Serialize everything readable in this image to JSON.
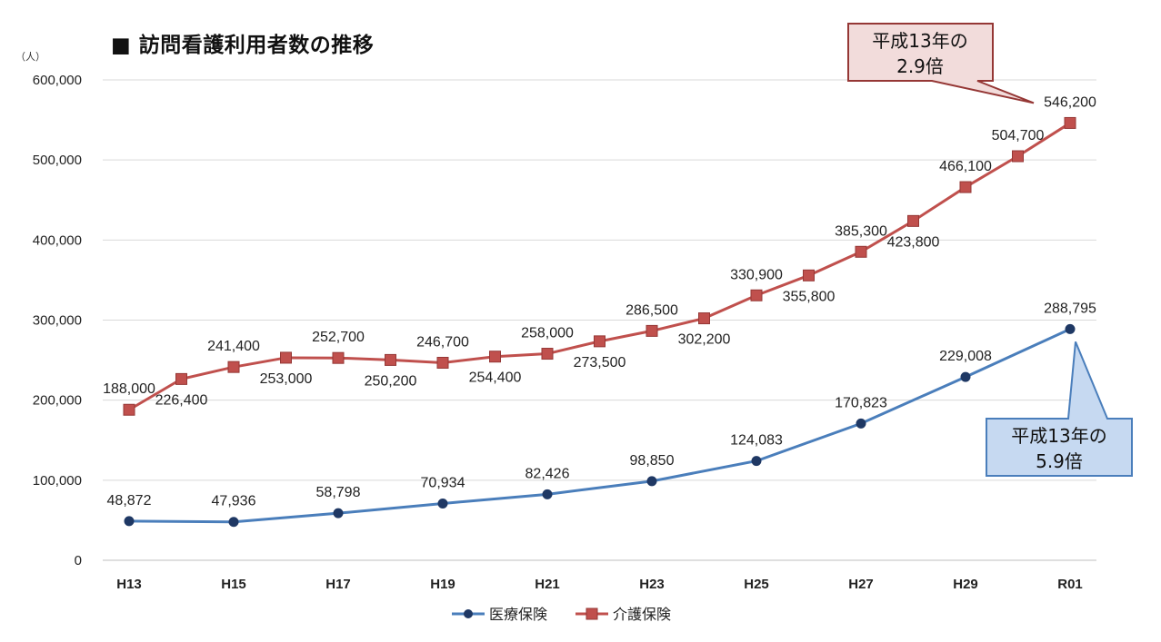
{
  "title": "■ 訪問看護利用者数の推移",
  "chart_data": {
    "type": "line",
    "unit": "（人）",
    "ylim": [
      0,
      600000
    ],
    "yticks": [
      0,
      100000,
      200000,
      300000,
      400000,
      500000,
      600000
    ],
    "ytick_labels": [
      "0",
      "100,000",
      "200,000",
      "300,000",
      "400,000",
      "500,000",
      "600,000"
    ],
    "x": [
      "H13",
      "H14",
      "H15",
      "H16",
      "H17",
      "H18",
      "H19",
      "H20",
      "H21",
      "H22",
      "H23",
      "H24",
      "H25",
      "H26",
      "H27",
      "H28",
      "H29",
      "H30",
      "R01"
    ],
    "xtick_labels": [
      "H13",
      "H15",
      "H17",
      "H19",
      "H21",
      "H23",
      "H25",
      "H27",
      "H29",
      "R01"
    ],
    "grid": true,
    "legend_position": "bottom",
    "series": [
      {
        "name": "医療保険",
        "color": "#4a7ebb",
        "marker": "circle",
        "x": [
          "H13",
          "H15",
          "H17",
          "H19",
          "H21",
          "H23",
          "H25",
          "H27",
          "H29",
          "R01"
        ],
        "values": [
          48872,
          47936,
          58798,
          70934,
          82426,
          98850,
          124083,
          170823,
          229008,
          288795
        ],
        "labels": [
          "48,872",
          "47,936",
          "58,798",
          "70,934",
          "82,426",
          "98,850",
          "124,083",
          "170,823",
          "229,008",
          "288,795"
        ]
      },
      {
        "name": "介護保険",
        "color": "#c0504d",
        "marker": "square",
        "x": [
          "H13",
          "H14",
          "H15",
          "H16",
          "H17",
          "H18",
          "H19",
          "H20",
          "H21",
          "H22",
          "H23",
          "H24",
          "H25",
          "H26",
          "H27",
          "H28",
          "H29",
          "H30",
          "R01"
        ],
        "values": [
          188000,
          226400,
          241400,
          253000,
          252700,
          250200,
          246700,
          254400,
          258000,
          273500,
          286500,
          302200,
          330900,
          355800,
          385300,
          423800,
          466100,
          504700,
          546200
        ],
        "labels": [
          "188,000",
          "226,400",
          "241,400",
          "253,000",
          "252,700",
          "250,200",
          "246,700",
          "254,400",
          "258,000",
          "273,500",
          "286,500",
          "302,200",
          "330,900",
          "355,800",
          "385,300",
          "423,800",
          "466,100",
          "504,700",
          "546,200"
        ]
      }
    ],
    "annotations": [
      {
        "text_line1": "平成13年の",
        "text_line2": "2.9倍",
        "target_series": "介護保険",
        "fill": "#f2dcdb",
        "stroke": "#953735"
      },
      {
        "text_line1": "平成13年の",
        "text_line2": "5.9倍",
        "target_series": "医療保険",
        "fill": "#c6d9f1",
        "stroke": "#4a7ebb"
      }
    ]
  }
}
